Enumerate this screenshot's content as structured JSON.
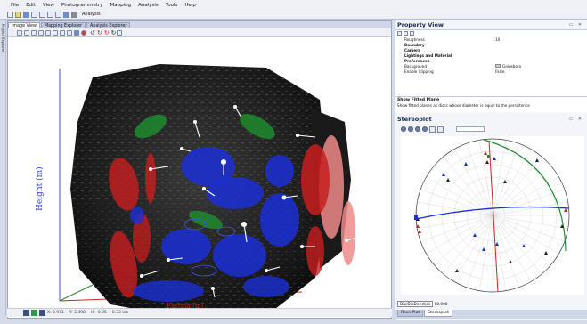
{
  "menu": [
    "File",
    "Edit",
    "View",
    "Photogrammetry",
    "Mapping",
    "Analysis",
    "Tools",
    "Help"
  ],
  "toolbar": {
    "analysis_label": "Analysis"
  },
  "left_strip_label": "Project Explorer",
  "view_tabs": [
    "Image View",
    "Mapping Explorer",
    "Analysis Explorer"
  ],
  "axes": {
    "y_label": "Height (m)",
    "x_label": "Easting (m)"
  },
  "status": {
    "x": "X: 2.971",
    "y": "Y: 3.498",
    "h": "H: -0.95",
    "dist": "0.33 km"
  },
  "property_view": {
    "title": "Property View",
    "rows": [
      {
        "key": "Roughness",
        "value": "10",
        "bold": false
      },
      {
        "key": "Boundary",
        "value": "",
        "bold": true
      },
      {
        "key": "Camera",
        "value": "",
        "bold": true
      },
      {
        "key": "Lightings and Material",
        "value": "",
        "bold": true
      },
      {
        "key": "Preferences",
        "value": "",
        "bold": true
      },
      {
        "key": "Background",
        "value": "Gainsboro",
        "bold": false,
        "swatch": true
      },
      {
        "key": "Enable Clipping",
        "value": "False",
        "bold": false
      }
    ],
    "help_title": "Show Fitted Plane",
    "help_text": "Show fitted planes as discs whose diameter is equal to the persistence"
  },
  "stereoplot": {
    "title": "Stereoplot",
    "dip_label": "Dip/DipDirection",
    "dip_value": "00.000"
  },
  "bottom_tabs": [
    "Rose Plot",
    "Stereoplot"
  ],
  "colors": {
    "blue_plane": "#1c2fd6",
    "red_plane": "#c81e1e",
    "green_plane": "#1f8a2e",
    "pink_plane": "#f08a8a"
  }
}
